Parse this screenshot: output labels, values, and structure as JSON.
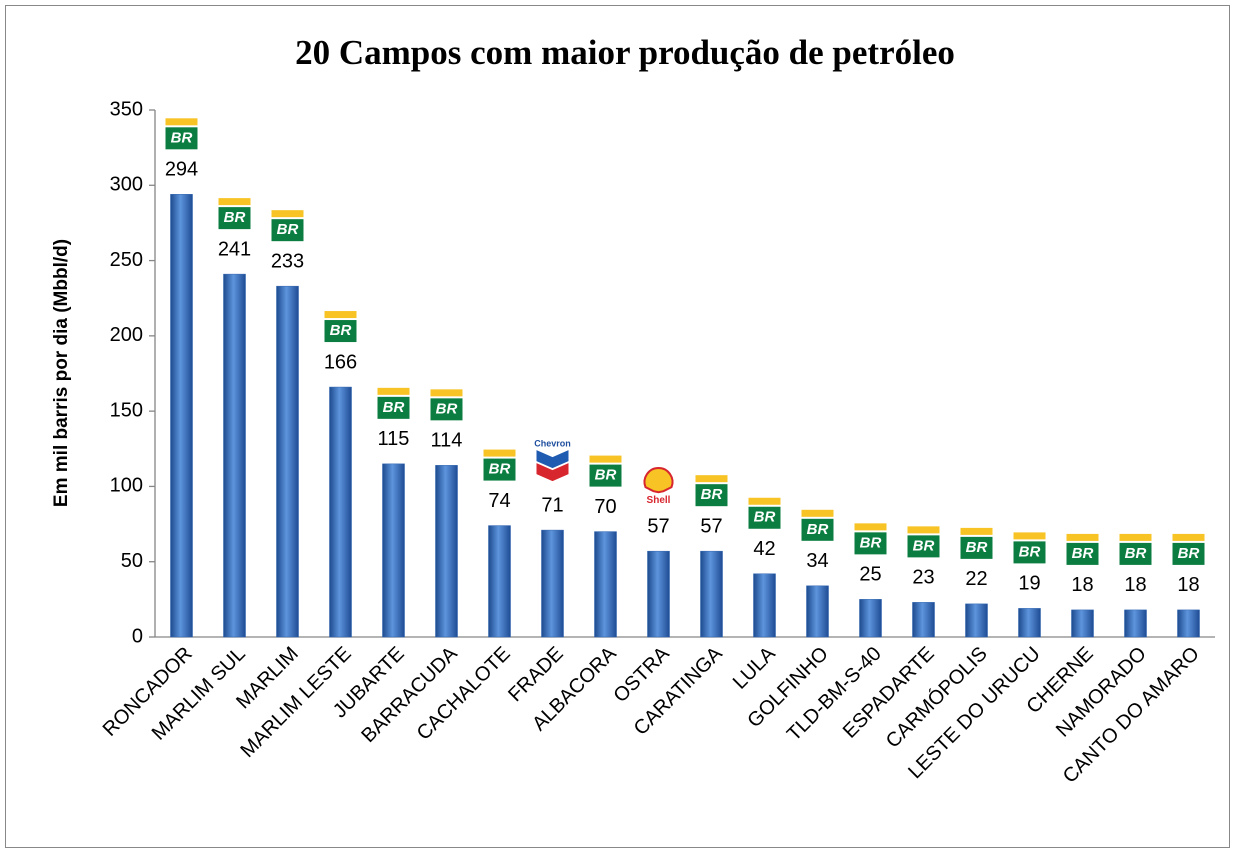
{
  "chart_data": {
    "type": "bar",
    "title": "20 Campos com maior produção de petróleo",
    "y_label": "Em mil barris por dia (Mbbl/d)",
    "categories": [
      "RONCADOR",
      "MARLIM SUL",
      "MARLIM",
      "MARLIM LESTE",
      "JUBARTE",
      "BARRACUDA",
      "CACHALOTE",
      "FRADE",
      "ALBACORA",
      "OSTRA",
      "CARATINGA",
      "LULA",
      "GOLFINHO",
      "TLD-BM-S-40",
      "ESPADARTE",
      "CARMÓPOLIS",
      "LESTE DO URUCU",
      "CHERNE",
      "NAMORADO",
      "CANTO DO AMARO"
    ],
    "values": [
      294,
      241,
      233,
      166,
      115,
      114,
      74,
      71,
      70,
      57,
      57,
      42,
      34,
      25,
      23,
      22,
      19,
      18,
      18,
      18
    ],
    "logos": [
      "BR",
      "BR",
      "BR",
      "BR",
      "BR",
      "BR",
      "BR",
      "Chevron",
      "BR",
      "Shell",
      "BR",
      "BR",
      "BR",
      "BR",
      "BR",
      "BR",
      "BR",
      "BR",
      "BR",
      "BR"
    ],
    "color": "#2e63b0",
    "ylim": [
      0,
      350
    ],
    "yticks": [
      0,
      50,
      100,
      150,
      200,
      250,
      300,
      350
    ],
    "grid": false
  }
}
